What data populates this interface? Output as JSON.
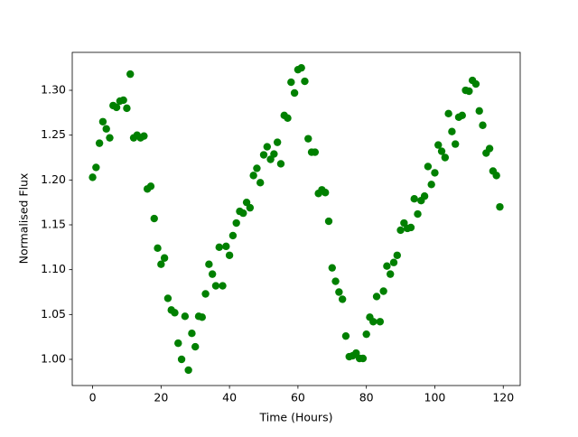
{
  "chart_data": {
    "type": "scatter",
    "x_label": "Time (Hours)",
    "y_label": "Normalised Flux",
    "color": "#008000",
    "x": [
      0,
      1,
      2,
      3,
      4,
      5,
      6,
      7,
      8,
      9,
      10,
      11,
      12,
      13,
      14,
      15,
      16,
      17,
      18,
      19,
      20,
      21,
      22,
      23,
      24,
      25,
      26,
      27,
      28,
      29,
      30,
      31,
      32,
      33,
      34,
      35,
      36,
      37,
      38,
      39,
      40,
      41,
      42,
      43,
      44,
      45,
      46,
      47,
      48,
      49,
      50,
      51,
      52,
      53,
      54,
      55,
      56,
      57,
      58,
      59,
      60,
      61,
      62,
      63,
      64,
      65,
      66,
      67,
      68,
      69,
      70,
      71,
      72,
      73,
      74,
      75,
      76,
      77,
      78,
      79,
      80,
      81,
      82,
      83,
      84,
      85,
      86,
      87,
      88,
      89,
      90,
      91,
      92,
      93,
      94,
      95,
      96,
      97,
      98,
      99,
      100,
      101,
      102,
      103,
      104,
      105,
      106,
      107,
      108,
      109,
      110,
      111,
      112,
      113,
      114,
      115,
      116,
      117,
      118,
      119
    ],
    "values": [
      1.203,
      1.214,
      1.241,
      1.265,
      1.257,
      1.247,
      1.283,
      1.281,
      1.288,
      1.289,
      1.28,
      1.318,
      1.247,
      1.25,
      1.247,
      1.249,
      1.19,
      1.193,
      1.157,
      1.124,
      1.106,
      1.113,
      1.068,
      1.055,
      1.052,
      1.018,
      1.0,
      1.048,
      0.988,
      1.029,
      1.014,
      1.048,
      1.047,
      1.073,
      1.106,
      1.095,
      1.082,
      1.125,
      1.082,
      1.126,
      1.116,
      1.138,
      1.152,
      1.165,
      1.163,
      1.175,
      1.169,
      1.205,
      1.213,
      1.197,
      1.228,
      1.237,
      1.223,
      1.229,
      1.242,
      1.218,
      1.272,
      1.269,
      1.309,
      1.297,
      1.323,
      1.325,
      1.31,
      1.246,
      1.231,
      1.231,
      1.185,
      1.189,
      1.186,
      1.154,
      1.102,
      1.087,
      1.075,
      1.067,
      1.026,
      1.003,
      1.004,
      1.007,
      1.001,
      1.001,
      1.028,
      1.047,
      1.042,
      1.07,
      1.042,
      1.076,
      1.104,
      1.095,
      1.108,
      1.116,
      1.144,
      1.152,
      1.146,
      1.147,
      1.179,
      1.162,
      1.177,
      1.182,
      1.215,
      1.195,
      1.208,
      1.239,
      1.232,
      1.225,
      1.274,
      1.254,
      1.24,
      1.27,
      1.272,
      1.3,
      1.299,
      1.311,
      1.307,
      1.277,
      1.261,
      1.23,
      1.235,
      1.21,
      1.205,
      1.17
    ],
    "xlim": [
      -5.95,
      124.95
    ],
    "ylim": [
      0.9708,
      1.3423
    ],
    "xticks": [
      0,
      20,
      40,
      60,
      80,
      100,
      120
    ],
    "yticks": [
      {
        "value": 1,
        "label": "1.00"
      },
      1.05,
      {
        "value": 1.1,
        "label": "1.10"
      },
      1.15,
      {
        "value": 1.2,
        "label": "1.20"
      },
      1.25,
      {
        "value": 1.3,
        "label": "1.30"
      }
    ]
  }
}
